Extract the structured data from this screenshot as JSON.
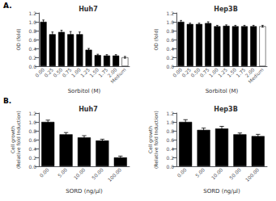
{
  "chart_data": [
    {
      "type": "bar",
      "title": "Huh7",
      "annotations": [
        "A."
      ],
      "xlabel": "Sorbitol (M)",
      "ylabel": "OD (fold)",
      "categories": [
        "0.00",
        "0.25",
        "0.50",
        "0.75",
        "1.00",
        "1.25",
        "1.50",
        "1.75",
        "2.00",
        "Medium"
      ],
      "values": [
        1.0,
        0.72,
        0.77,
        0.72,
        0.72,
        0.37,
        0.25,
        0.24,
        0.24,
        0.2
      ],
      "errors": [
        0.04,
        0.05,
        0.04,
        0.06,
        0.05,
        0.03,
        0.02,
        0.02,
        0.02,
        0.02
      ],
      "colors": [
        "black",
        "black",
        "black",
        "black",
        "black",
        "black",
        "black",
        "black",
        "black",
        "white"
      ],
      "ylim": [
        0.0,
        1.2
      ],
      "yticks": [
        {
          "value": 0.0,
          "label": "0.0"
        },
        0.2,
        0.4,
        0.6,
        0.8,
        {
          "value": 1.0,
          "label": "1.0"
        },
        1.2
      ],
      "grid": false
    },
    {
      "type": "bar",
      "title": "Hep3B",
      "xlabel": "Sorbitol (M)",
      "ylabel": "OD (fold)",
      "categories": [
        "0.00",
        "0.25",
        "0.50",
        "0.75",
        "1.00",
        "1.25",
        "1.50",
        "1.75",
        "2.00",
        "Medium"
      ],
      "values": [
        1.0,
        0.95,
        0.95,
        0.97,
        0.9,
        0.91,
        0.9,
        0.9,
        0.9,
        0.9
      ],
      "errors": [
        0.03,
        0.02,
        0.02,
        0.03,
        0.02,
        0.02,
        0.02,
        0.02,
        0.02,
        0.02
      ],
      "colors": [
        "black",
        "black",
        "black",
        "black",
        "black",
        "black",
        "black",
        "black",
        "black",
        "white"
      ],
      "ylim": [
        0.0,
        1.2
      ],
      "yticks": [
        {
          "value": 0.0,
          "label": "0.0"
        },
        0.2,
        0.4,
        0.6,
        0.8,
        {
          "value": 1.0,
          "label": "1.0"
        },
        1.2
      ],
      "grid": false
    },
    {
      "type": "bar",
      "title": "Huh7",
      "annotations": [
        "B."
      ],
      "xlabel": "SORD (ng/μl)",
      "ylabel": "Cell growth\n(Relative fold Induction)",
      "categories": [
        "0.00",
        "5.00",
        "10.00",
        "50.00",
        "100.00"
      ],
      "values": [
        1.0,
        0.72,
        0.65,
        0.58,
        0.2
      ],
      "errors": [
        0.04,
        0.04,
        0.04,
        0.03,
        0.03
      ],
      "colors": [
        "black",
        "black",
        "black",
        "black",
        "black"
      ],
      "ylim": [
        0.0,
        1.2
      ],
      "yticks": [
        {
          "value": 0.0,
          "label": "0.0"
        },
        0.2,
        0.4,
        0.6,
        0.8,
        {
          "value": 1.0,
          "label": "1.0"
        },
        1.2
      ],
      "grid": false
    },
    {
      "type": "bar",
      "title": "Hep3B",
      "xlabel": "SORD (ng/μl)",
      "ylabel": "Cell growth\n(Relative fold Induction)",
      "categories": [
        "0.00",
        "5.00",
        "10.00",
        "50.00",
        "100.00"
      ],
      "values": [
        1.0,
        0.82,
        0.85,
        0.72,
        0.68
      ],
      "errors": [
        0.05,
        0.04,
        0.05,
        0.03,
        0.04
      ],
      "colors": [
        "black",
        "black",
        "black",
        "black",
        "black"
      ],
      "ylim": [
        0.0,
        1.2
      ],
      "yticks": [
        {
          "value": 0.0,
          "label": "0.0"
        },
        0.2,
        0.4,
        0.6,
        0.8,
        {
          "value": 1.0,
          "label": "1.0"
        },
        1.2
      ],
      "grid": false
    }
  ]
}
